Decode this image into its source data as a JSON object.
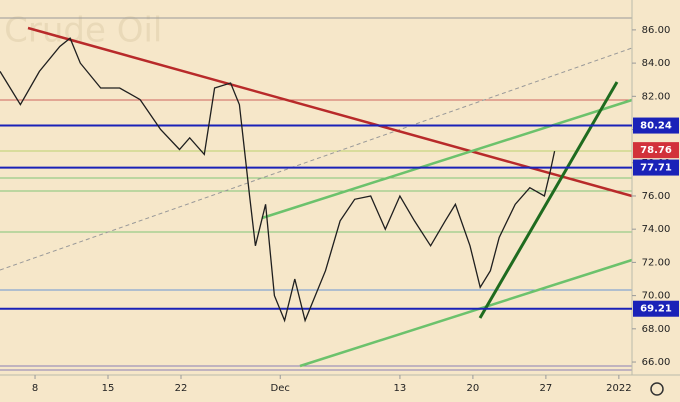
{
  "chart_data": {
    "type": "line",
    "title": "t Crude Oil",
    "x": [
      -2.4,
      -1,
      0.3,
      1.7,
      2.4,
      3.1,
      4.5,
      5.8,
      7.2,
      8.6,
      9.9,
      10.6,
      11.6,
      12.3,
      13.4,
      14,
      14.7,
      15.1,
      15.8,
      16.4,
      17.1,
      17.8,
      18.5,
      19.2,
      19.9,
      20.9,
      21.9,
      23,
      24,
      25,
      26,
      27.1,
      28.1,
      28.8,
      29.8,
      30.5,
      31.2,
      31.8,
      32.9,
      33.9,
      34.9,
      35.3,
      35.6
    ],
    "values": [
      83.5,
      81.5,
      83.5,
      85.0,
      85.5,
      84.0,
      82.5,
      82.5,
      81.8,
      80.0,
      78.8,
      79.5,
      78.5,
      82.5,
      82.8,
      81.5,
      76.0,
      73.0,
      75.5,
      70.0,
      68.5,
      71.0,
      68.5,
      70.0,
      71.5,
      74.5,
      75.8,
      76.0,
      74.0,
      76.0,
      74.5,
      73.0,
      74.5,
      75.5,
      73.0,
      70.5,
      71.5,
      73.5,
      75.5,
      76.5,
      76.0,
      77.5,
      78.7
    ],
    "color": "#1f1f1f",
    "xlim": [
      -2.4,
      40.9
    ],
    "ylim": [
      65.4,
      87.8
    ],
    "xticks": [
      {
        "value": 0,
        "label": "8"
      },
      {
        "value": 5,
        "label": "15"
      },
      {
        "value": 10,
        "label": "22"
      },
      {
        "value": 16.8,
        "label": "Dec"
      },
      {
        "value": 25,
        "label": "13"
      },
      {
        "value": 30,
        "label": "20"
      },
      {
        "value": 35,
        "label": "27"
      },
      {
        "value": 40,
        "label": "2022"
      }
    ],
    "yticks": [
      {
        "value": 66,
        "label": "66.00"
      },
      {
        "value": 68,
        "label": "68.00"
      },
      {
        "value": 70,
        "label": "70.00"
      },
      {
        "value": 72,
        "label": "72.00"
      },
      {
        "value": 74,
        "label": "74.00"
      },
      {
        "value": 76,
        "label": "76.00"
      },
      {
        "value": 78,
        "label": "78.00"
      },
      {
        "value": 80,
        "label": "80.00"
      },
      {
        "value": 82,
        "label": "82.00"
      },
      {
        "value": 84,
        "label": "84.00"
      },
      {
        "value": 86,
        "label": "86.00"
      }
    ],
    "levels": [
      {
        "value": 80.24,
        "color": "#1a22b8"
      },
      {
        "value": 78.76,
        "color": "#d2313a"
      },
      {
        "value": 77.71,
        "color": "#1a22b8"
      },
      {
        "value": 69.21,
        "color": "#1a22b8"
      }
    ]
  }
}
